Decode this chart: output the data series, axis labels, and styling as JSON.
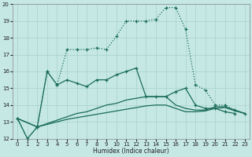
{
  "xlabel": "Humidex (Indice chaleur)",
  "bg_color": "#c5e8e5",
  "grid_color": "#a8d0cc",
  "line_color": "#1a6b5a",
  "xlim": [
    -0.5,
    23.5
  ],
  "ylim": [
    12,
    20
  ],
  "xticks": [
    0,
    1,
    2,
    3,
    4,
    5,
    6,
    7,
    8,
    9,
    10,
    11,
    12,
    13,
    14,
    15,
    16,
    17,
    18,
    19,
    20,
    21,
    22,
    23
  ],
  "yticks": [
    12,
    13,
    14,
    15,
    16,
    17,
    18,
    19,
    20
  ],
  "line1_x": [
    0,
    1,
    2,
    3,
    4,
    5,
    6,
    7,
    8,
    9,
    10,
    11,
    12,
    13,
    14,
    15,
    16,
    17,
    18,
    19,
    20,
    21,
    22,
    23
  ],
  "line1_y": [
    13.2,
    12.0,
    12.7,
    16.0,
    15.2,
    17.3,
    17.3,
    17.3,
    17.4,
    17.3,
    18.1,
    19.0,
    19.0,
    19.0,
    19.1,
    19.8,
    19.8,
    18.5,
    15.2,
    14.9,
    14.0,
    14.0,
    13.7,
    13.5
  ],
  "line2_x": [
    0,
    1,
    2,
    3,
    4,
    5,
    6,
    7,
    8,
    9,
    10,
    11,
    12,
    13,
    14,
    15,
    16,
    17,
    18,
    19,
    20,
    21,
    22
  ],
  "line2_y": [
    13.2,
    12.0,
    12.7,
    16.0,
    15.2,
    15.5,
    15.3,
    15.1,
    15.5,
    15.5,
    15.8,
    16.0,
    16.2,
    14.5,
    14.5,
    14.5,
    14.8,
    15.0,
    14.0,
    13.8,
    13.8,
    13.6,
    13.5
  ],
  "line3_x": [
    0,
    2,
    3,
    4,
    5,
    6,
    7,
    8,
    9,
    10,
    11,
    12,
    13,
    14,
    15,
    16,
    17,
    18,
    19,
    20,
    21,
    22,
    23
  ],
  "line3_y": [
    13.2,
    12.7,
    12.9,
    13.1,
    13.3,
    13.5,
    13.6,
    13.8,
    14.0,
    14.1,
    14.3,
    14.4,
    14.5,
    14.5,
    14.5,
    14.0,
    13.8,
    13.7,
    13.7,
    13.9,
    13.9,
    13.7,
    13.5
  ],
  "line4_x": [
    0,
    2,
    3,
    4,
    5,
    6,
    7,
    8,
    9,
    10,
    11,
    12,
    13,
    14,
    15,
    16,
    17,
    18,
    19,
    20,
    21,
    22,
    23
  ],
  "line4_y": [
    13.2,
    12.7,
    12.85,
    13.0,
    13.15,
    13.25,
    13.35,
    13.45,
    13.55,
    13.65,
    13.75,
    13.85,
    13.95,
    14.0,
    14.0,
    13.8,
    13.6,
    13.6,
    13.65,
    13.8,
    13.85,
    13.65,
    13.5
  ]
}
